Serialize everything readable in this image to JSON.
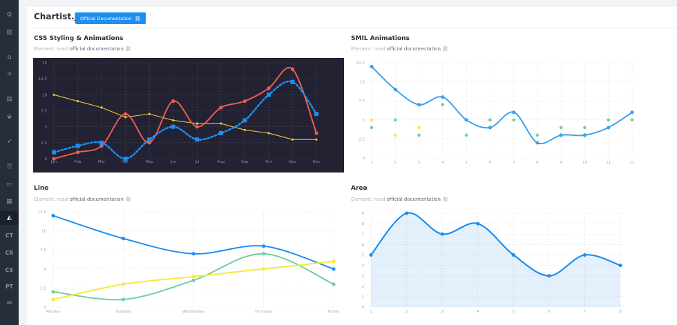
{
  "sidebar": {
    "icon_items": [
      {
        "icon": "gear-icon",
        "glyph": "⚙"
      },
      {
        "icon": "library-icon",
        "glyph": "▥"
      },
      {
        "icon": "home-icon",
        "glyph": "⌂"
      },
      {
        "icon": "home-icon-2",
        "glyph": "⌂"
      },
      {
        "icon": "calendar-icon",
        "glyph": "▤"
      },
      {
        "icon": "inbox-icon",
        "glyph": "⬙"
      },
      {
        "icon": "rocket-icon",
        "glyph": "➶"
      },
      {
        "icon": "list-icon",
        "glyph": "☰"
      },
      {
        "icon": "message-icon",
        "glyph": "▭"
      },
      {
        "icon": "grid-icon",
        "glyph": "▦"
      },
      {
        "icon": "chart-icon",
        "glyph": "◭"
      }
    ],
    "text_items": [
      "CT",
      "CR",
      "CS",
      "PT"
    ],
    "mail_icon": "✉"
  },
  "header": {
    "title": "Chartist.js",
    "doc_button": "Official Documentation",
    "link_icon": "🔗"
  },
  "cards": {
    "css": {
      "title": "CSS Styling & Animations",
      "sub_prefix": "Element: read ",
      "sub_link": "official documentation"
    },
    "smil": {
      "title": "SMIL Animations",
      "sub_prefix": "Element: read ",
      "sub_link": "official documentation"
    },
    "line": {
      "title": "Line",
      "sub_prefix": "Element: read ",
      "sub_link": "official documentation"
    },
    "area": {
      "title": "Area",
      "sub_prefix": "Element: read ",
      "sub_link": "official documentation"
    }
  },
  "chart_data": [
    {
      "id": "css",
      "type": "line",
      "background": "#222233",
      "categories": [
        "Jan",
        "Feb",
        "Mar",
        "Apr",
        "May",
        "Jun",
        "Jul",
        "Aug",
        "Sep",
        "Oct",
        "Nov",
        "Dec"
      ],
      "yticks": [
        "0",
        "2.5",
        "5",
        "7.5",
        "10",
        "12.5",
        "15"
      ],
      "ylim": [
        0,
        15
      ],
      "series": [
        {
          "values": [
            10,
            9,
            8,
            6.5,
            7,
            6,
            5.5,
            5.5,
            4.5,
            4,
            3,
            3
          ],
          "color": "#f3c443",
          "style": "point"
        },
        {
          "values": [
            0,
            1,
            2,
            7,
            2.5,
            9,
            5,
            8,
            9,
            11,
            14,
            4
          ],
          "color": "#f05b4f",
          "style": "curve"
        },
        {
          "values": [
            1,
            2,
            2.5,
            0,
            3,
            5,
            3,
            4,
            6,
            10,
            12,
            7
          ],
          "color": "#1e8fef",
          "style": "dotted-square"
        }
      ]
    },
    {
      "id": "smil",
      "type": "line",
      "categories": [
        "1",
        "2",
        "3",
        "4",
        "5",
        "6",
        "7",
        "8",
        "9",
        "10",
        "11",
        "12"
      ],
      "yticks": [
        "0",
        "2.5",
        "5",
        "7.5",
        "10",
        "12.5"
      ],
      "ylim": [
        0,
        12.5
      ],
      "series": [
        {
          "values": [
            12,
            9,
            7,
            8,
            5,
            4,
            6,
            2,
            3,
            3,
            4,
            6
          ],
          "color": "#3aa3ee",
          "style": "curve"
        },
        {
          "values": [
            4,
            5,
            3,
            7,
            3,
            5,
            5,
            3,
            4,
            4,
            5,
            5
          ],
          "color": "#72cf9f",
          "style": "points-only"
        },
        {
          "values": [
            5,
            3,
            4,
            null,
            null,
            null,
            null,
            null,
            null,
            null,
            null,
            null
          ],
          "color": "#f4ea3f",
          "style": "points-only"
        }
      ]
    },
    {
      "id": "line",
      "type": "line",
      "categories": [
        "Monday",
        "Tuesday",
        "Wednesday",
        "Thursday",
        "Friday"
      ],
      "yticks": [
        "0",
        "2.5",
        "5",
        "7.5",
        "10",
        "12.5"
      ],
      "ylim": [
        0,
        12.5
      ],
      "series": [
        {
          "values": [
            12,
            9,
            7,
            8,
            5
          ],
          "color": "#1e8fef",
          "style": "curve"
        },
        {
          "values": [
            2,
            1,
            3.5,
            7,
            3
          ],
          "color": "#72cf9f",
          "style": "curve"
        },
        {
          "values": [
            1,
            3,
            4,
            5,
            6
          ],
          "color": "#f4ea3f",
          "style": "curve"
        }
      ]
    },
    {
      "id": "area",
      "type": "area",
      "categories": [
        "1",
        "2",
        "3",
        "4",
        "5",
        "6",
        "7",
        "8"
      ],
      "yticks": [
        "0",
        "1",
        "2",
        "3",
        "4",
        "5",
        "6",
        "7",
        "8",
        "9"
      ],
      "ylim": [
        0,
        9
      ],
      "series": [
        {
          "values": [
            5,
            9,
            7,
            8,
            5,
            3,
            5,
            4
          ],
          "color": "#1e8fef",
          "style": "area"
        }
      ]
    }
  ]
}
